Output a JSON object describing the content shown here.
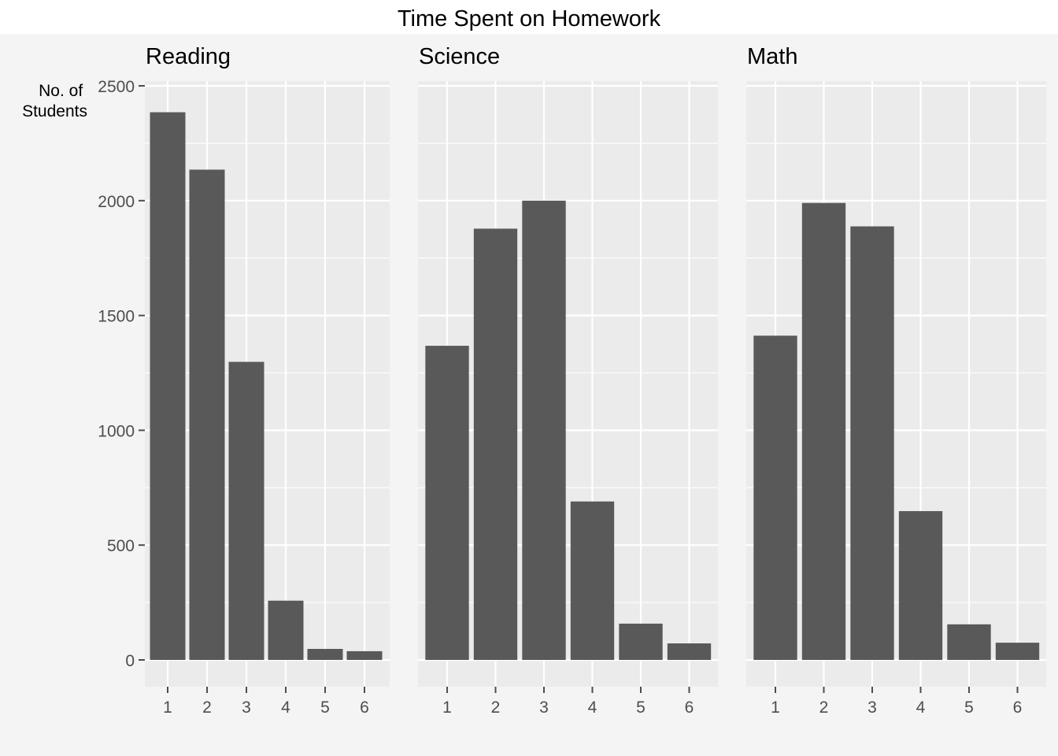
{
  "chart_data": {
    "type": "bar",
    "title": "Time Spent on Homework",
    "ylabel": "No. of\nStudents",
    "xlabel": "",
    "ylim": [
      0,
      2500
    ],
    "y_ticks": [
      0,
      500,
      1000,
      1500,
      2000,
      2500
    ],
    "categories": [
      "1",
      "2",
      "3",
      "4",
      "5",
      "6"
    ],
    "grid": true,
    "panels": [
      {
        "name": "Reading",
        "values": [
          2385,
          2135,
          1298,
          258,
          48,
          38
        ]
      },
      {
        "name": "Science",
        "values": [
          1368,
          1878,
          2000,
          690,
          158,
          72
        ]
      },
      {
        "name": "Math",
        "values": [
          1412,
          1990,
          1888,
          648,
          155,
          75
        ]
      }
    ]
  }
}
